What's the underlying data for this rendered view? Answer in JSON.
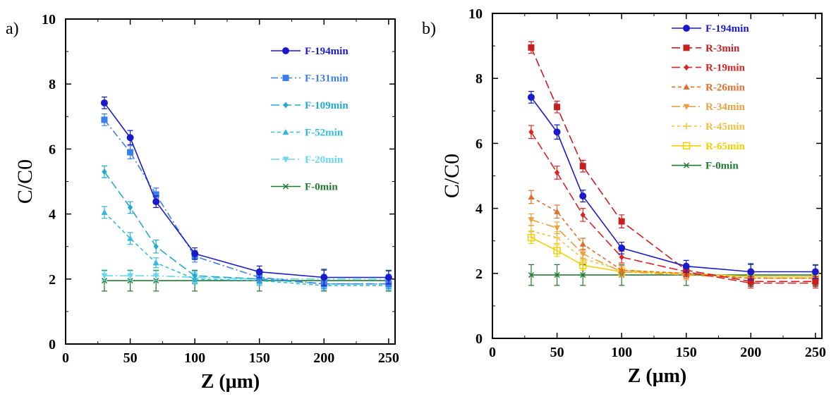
{
  "panels": [
    {
      "label": "a)"
    },
    {
      "label": "b)"
    }
  ],
  "chart_data": [
    {
      "type": "line",
      "panel_label": "a)",
      "xlabel": "Z (μm)",
      "ylabel": "C/C0",
      "xlim": [
        0,
        255
      ],
      "ylim": [
        0,
        10
      ],
      "xticks": [
        0,
        50,
        100,
        150,
        200,
        250
      ],
      "yticks": [
        0,
        2,
        4,
        6,
        8,
        10
      ],
      "legend_position": "top-right",
      "x": [
        30,
        50,
        70,
        100,
        150,
        200,
        250
      ],
      "series": [
        {
          "name": "F-194min",
          "color": "#1a1acc",
          "marker": "circle",
          "dash": "",
          "values": [
            7.42,
            6.35,
            4.38,
            2.78,
            2.22,
            2.05,
            2.05
          ],
          "errors": [
            0.18,
            0.22,
            0.18,
            0.18,
            0.18,
            0.25,
            0.2
          ]
        },
        {
          "name": "F-131min",
          "color": "#3a7ee8",
          "marker": "square",
          "dash": "10,4,2,4",
          "values": [
            6.9,
            5.9,
            4.6,
            2.7,
            2.05,
            1.85,
            1.85
          ],
          "errors": [
            0.18,
            0.2,
            0.2,
            0.18,
            0.15,
            0.15,
            0.15
          ]
        },
        {
          "name": "F-109min",
          "color": "#22aacc",
          "marker": "diamond",
          "dash": "12,5",
          "values": [
            5.3,
            4.2,
            3.0,
            2.1,
            2.0,
            1.85,
            1.85
          ],
          "errors": [
            0.18,
            0.18,
            0.2,
            0.15,
            0.15,
            0.15,
            0.15
          ]
        },
        {
          "name": "F-52min",
          "color": "#33bbdd",
          "marker": "triangle",
          "dash": "5,4",
          "values": [
            4.05,
            3.25,
            2.5,
            2.0,
            1.95,
            1.8,
            1.8
          ],
          "errors": [
            0.18,
            0.18,
            0.15,
            0.15,
            0.15,
            0.15,
            0.15
          ]
        },
        {
          "name": "F-20min",
          "color": "#66d8ee",
          "marker": "triangle-down",
          "dash": "12,4,2,4",
          "values": [
            2.1,
            2.1,
            2.1,
            2.05,
            2.0,
            2.0,
            2.0
          ],
          "errors": [
            0.15,
            0.15,
            0.15,
            0.15,
            0.15,
            0.15,
            0.15
          ]
        },
        {
          "name": "F-0min",
          "color": "#1f7a2e",
          "marker": "x",
          "dash": "",
          "values": [
            1.95,
            1.95,
            1.95,
            1.95,
            1.95,
            1.95,
            1.95
          ],
          "errors": [
            0.32,
            0.32,
            0.32,
            0.32,
            0.32,
            0.32,
            0.32
          ]
        }
      ]
    },
    {
      "type": "line",
      "panel_label": "b)",
      "xlabel": "Z (μm)",
      "ylabel": "C/C0",
      "xlim": [
        0,
        255
      ],
      "ylim": [
        0,
        10
      ],
      "xticks": [
        0,
        50,
        100,
        150,
        200,
        250
      ],
      "yticks": [
        0,
        2,
        4,
        6,
        8,
        10
      ],
      "legend_position": "top-right",
      "x": [
        30,
        50,
        70,
        100,
        150,
        200,
        250
      ],
      "series": [
        {
          "name": "F-194min",
          "color": "#1a1acc",
          "marker": "circle",
          "dash": "",
          "values": [
            7.42,
            6.35,
            4.38,
            2.78,
            2.22,
            2.05,
            2.05
          ],
          "errors": [
            0.18,
            0.22,
            0.18,
            0.18,
            0.18,
            0.25,
            0.2
          ]
        },
        {
          "name": "R-3min",
          "color": "#c81e1e",
          "marker": "square",
          "dash": "12,5",
          "values": [
            8.95,
            7.12,
            5.3,
            3.6,
            2.1,
            1.75,
            1.75
          ],
          "errors": [
            0.18,
            0.18,
            0.18,
            0.2,
            0.15,
            0.15,
            0.15
          ]
        },
        {
          "name": "R-19min",
          "color": "#dd2222",
          "marker": "diamond",
          "dash": "12,5",
          "values": [
            6.35,
            5.1,
            3.8,
            2.5,
            2.05,
            1.7,
            1.7
          ],
          "errors": [
            0.2,
            0.2,
            0.2,
            0.18,
            0.15,
            0.15,
            0.15
          ]
        },
        {
          "name": "R-26min",
          "color": "#e07030",
          "marker": "triangle",
          "dash": "5,4",
          "values": [
            4.35,
            3.9,
            2.9,
            2.1,
            2.0,
            1.85,
            1.85
          ],
          "errors": [
            0.2,
            0.2,
            0.18,
            0.15,
            0.15,
            0.15,
            0.15
          ]
        },
        {
          "name": "R-34min",
          "color": "#e8a040",
          "marker": "triangle-down",
          "dash": "12,4,2,4",
          "values": [
            3.65,
            3.4,
            2.6,
            2.05,
            1.95,
            1.85,
            1.85
          ],
          "errors": [
            0.18,
            0.18,
            0.15,
            0.15,
            0.15,
            0.15,
            0.15
          ]
        },
        {
          "name": "R-45min",
          "color": "#f0c040",
          "marker": "plus",
          "dash": "4,4",
          "values": [
            3.3,
            3.1,
            2.45,
            2.1,
            2.0,
            1.9,
            1.9
          ],
          "errors": [
            0.18,
            0.18,
            0.15,
            0.15,
            0.15,
            0.15,
            0.15
          ]
        },
        {
          "name": "R-65min",
          "color": "#f0d000",
          "marker": "square-open",
          "dash": "",
          "values": [
            3.1,
            2.7,
            2.25,
            2.05,
            2.0,
            1.9,
            1.9
          ],
          "errors": [
            0.18,
            0.18,
            0.15,
            0.15,
            0.15,
            0.15,
            0.15
          ]
        },
        {
          "name": "F-0min",
          "color": "#1f7a2e",
          "marker": "x",
          "dash": "",
          "values": [
            1.95,
            1.95,
            1.95,
            1.95,
            1.95,
            1.95,
            1.95
          ],
          "errors": [
            0.32,
            0.32,
            0.32,
            0.32,
            0.32,
            0.32,
            0.32
          ]
        }
      ]
    }
  ]
}
